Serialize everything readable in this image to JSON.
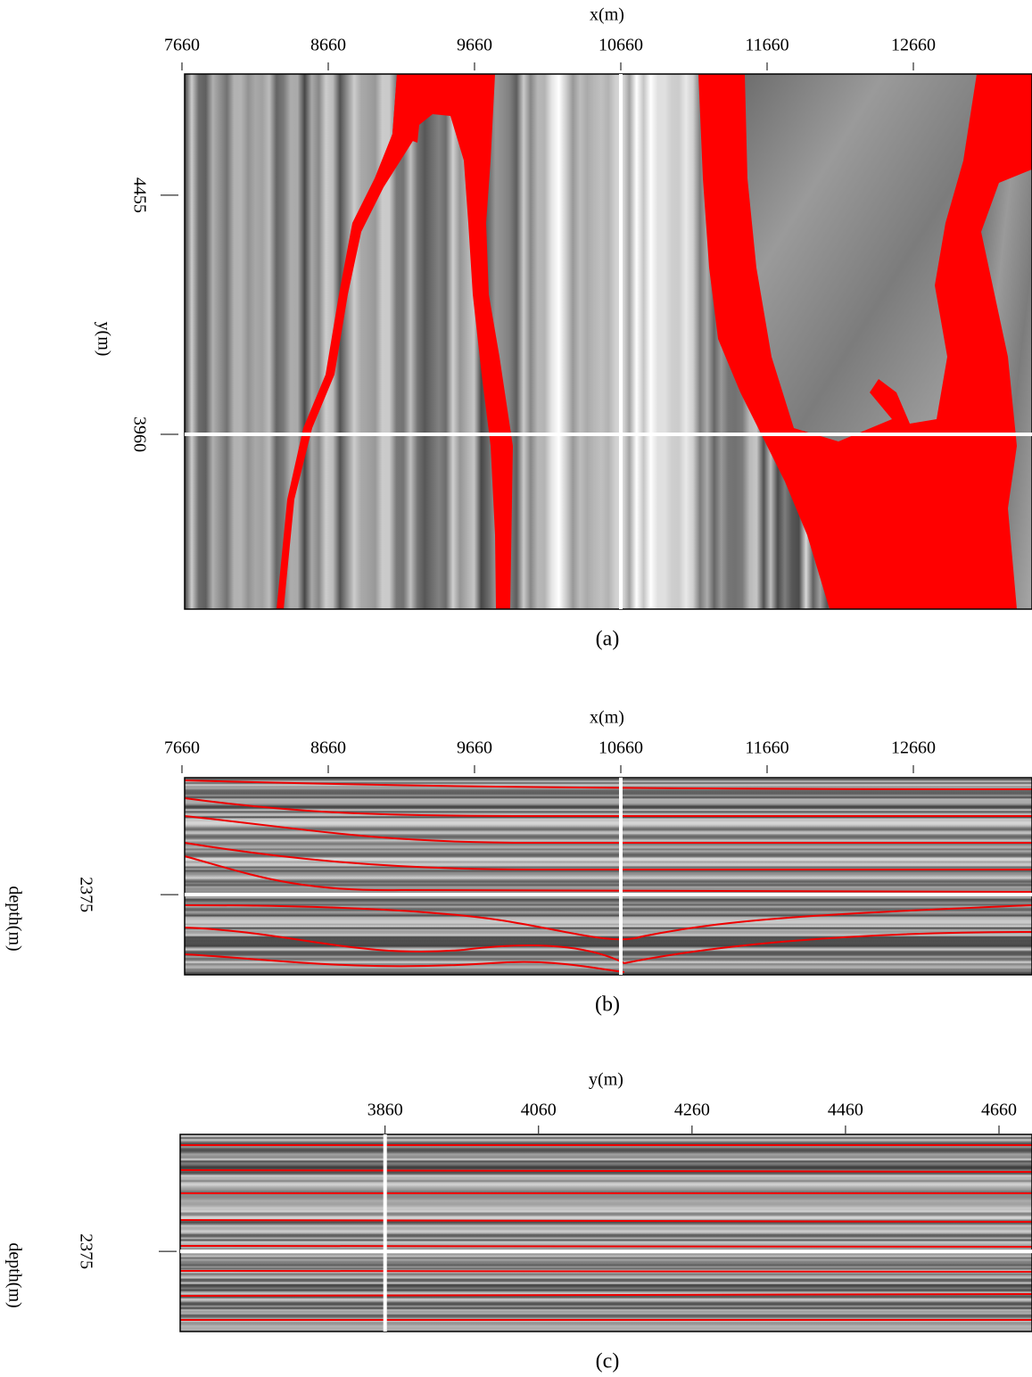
{
  "panels": [
    {
      "caption": "(a)",
      "x_label": "x(m)",
      "xlim": [
        7660,
        13471
      ],
      "xticks": [
        7660,
        8660,
        9660,
        10660,
        11660,
        12660
      ],
      "y_label": "y(m)",
      "ylim": [
        4706,
        3598
      ],
      "yticks": [
        4455,
        3960
      ]
    },
    {
      "caption": "(b)",
      "x_label": "x(m)",
      "xlim": [
        7660,
        13471
      ],
      "xticks": [
        7660,
        8660,
        9660,
        10660,
        11660,
        12660
      ],
      "y_label": "depth(m)",
      "ylim": [
        2000,
        2632
      ],
      "yticks": [
        2375
      ]
    },
    {
      "caption": "(c)",
      "x_label": "y(m)",
      "xlim": [
        3593,
        4703
      ],
      "xticks": [
        3860,
        4060,
        4260,
        4460,
        4660
      ],
      "y_label": "depth(m)",
      "ylim": [
        2000,
        2632
      ],
      "yticks": [
        2375
      ]
    }
  ]
}
